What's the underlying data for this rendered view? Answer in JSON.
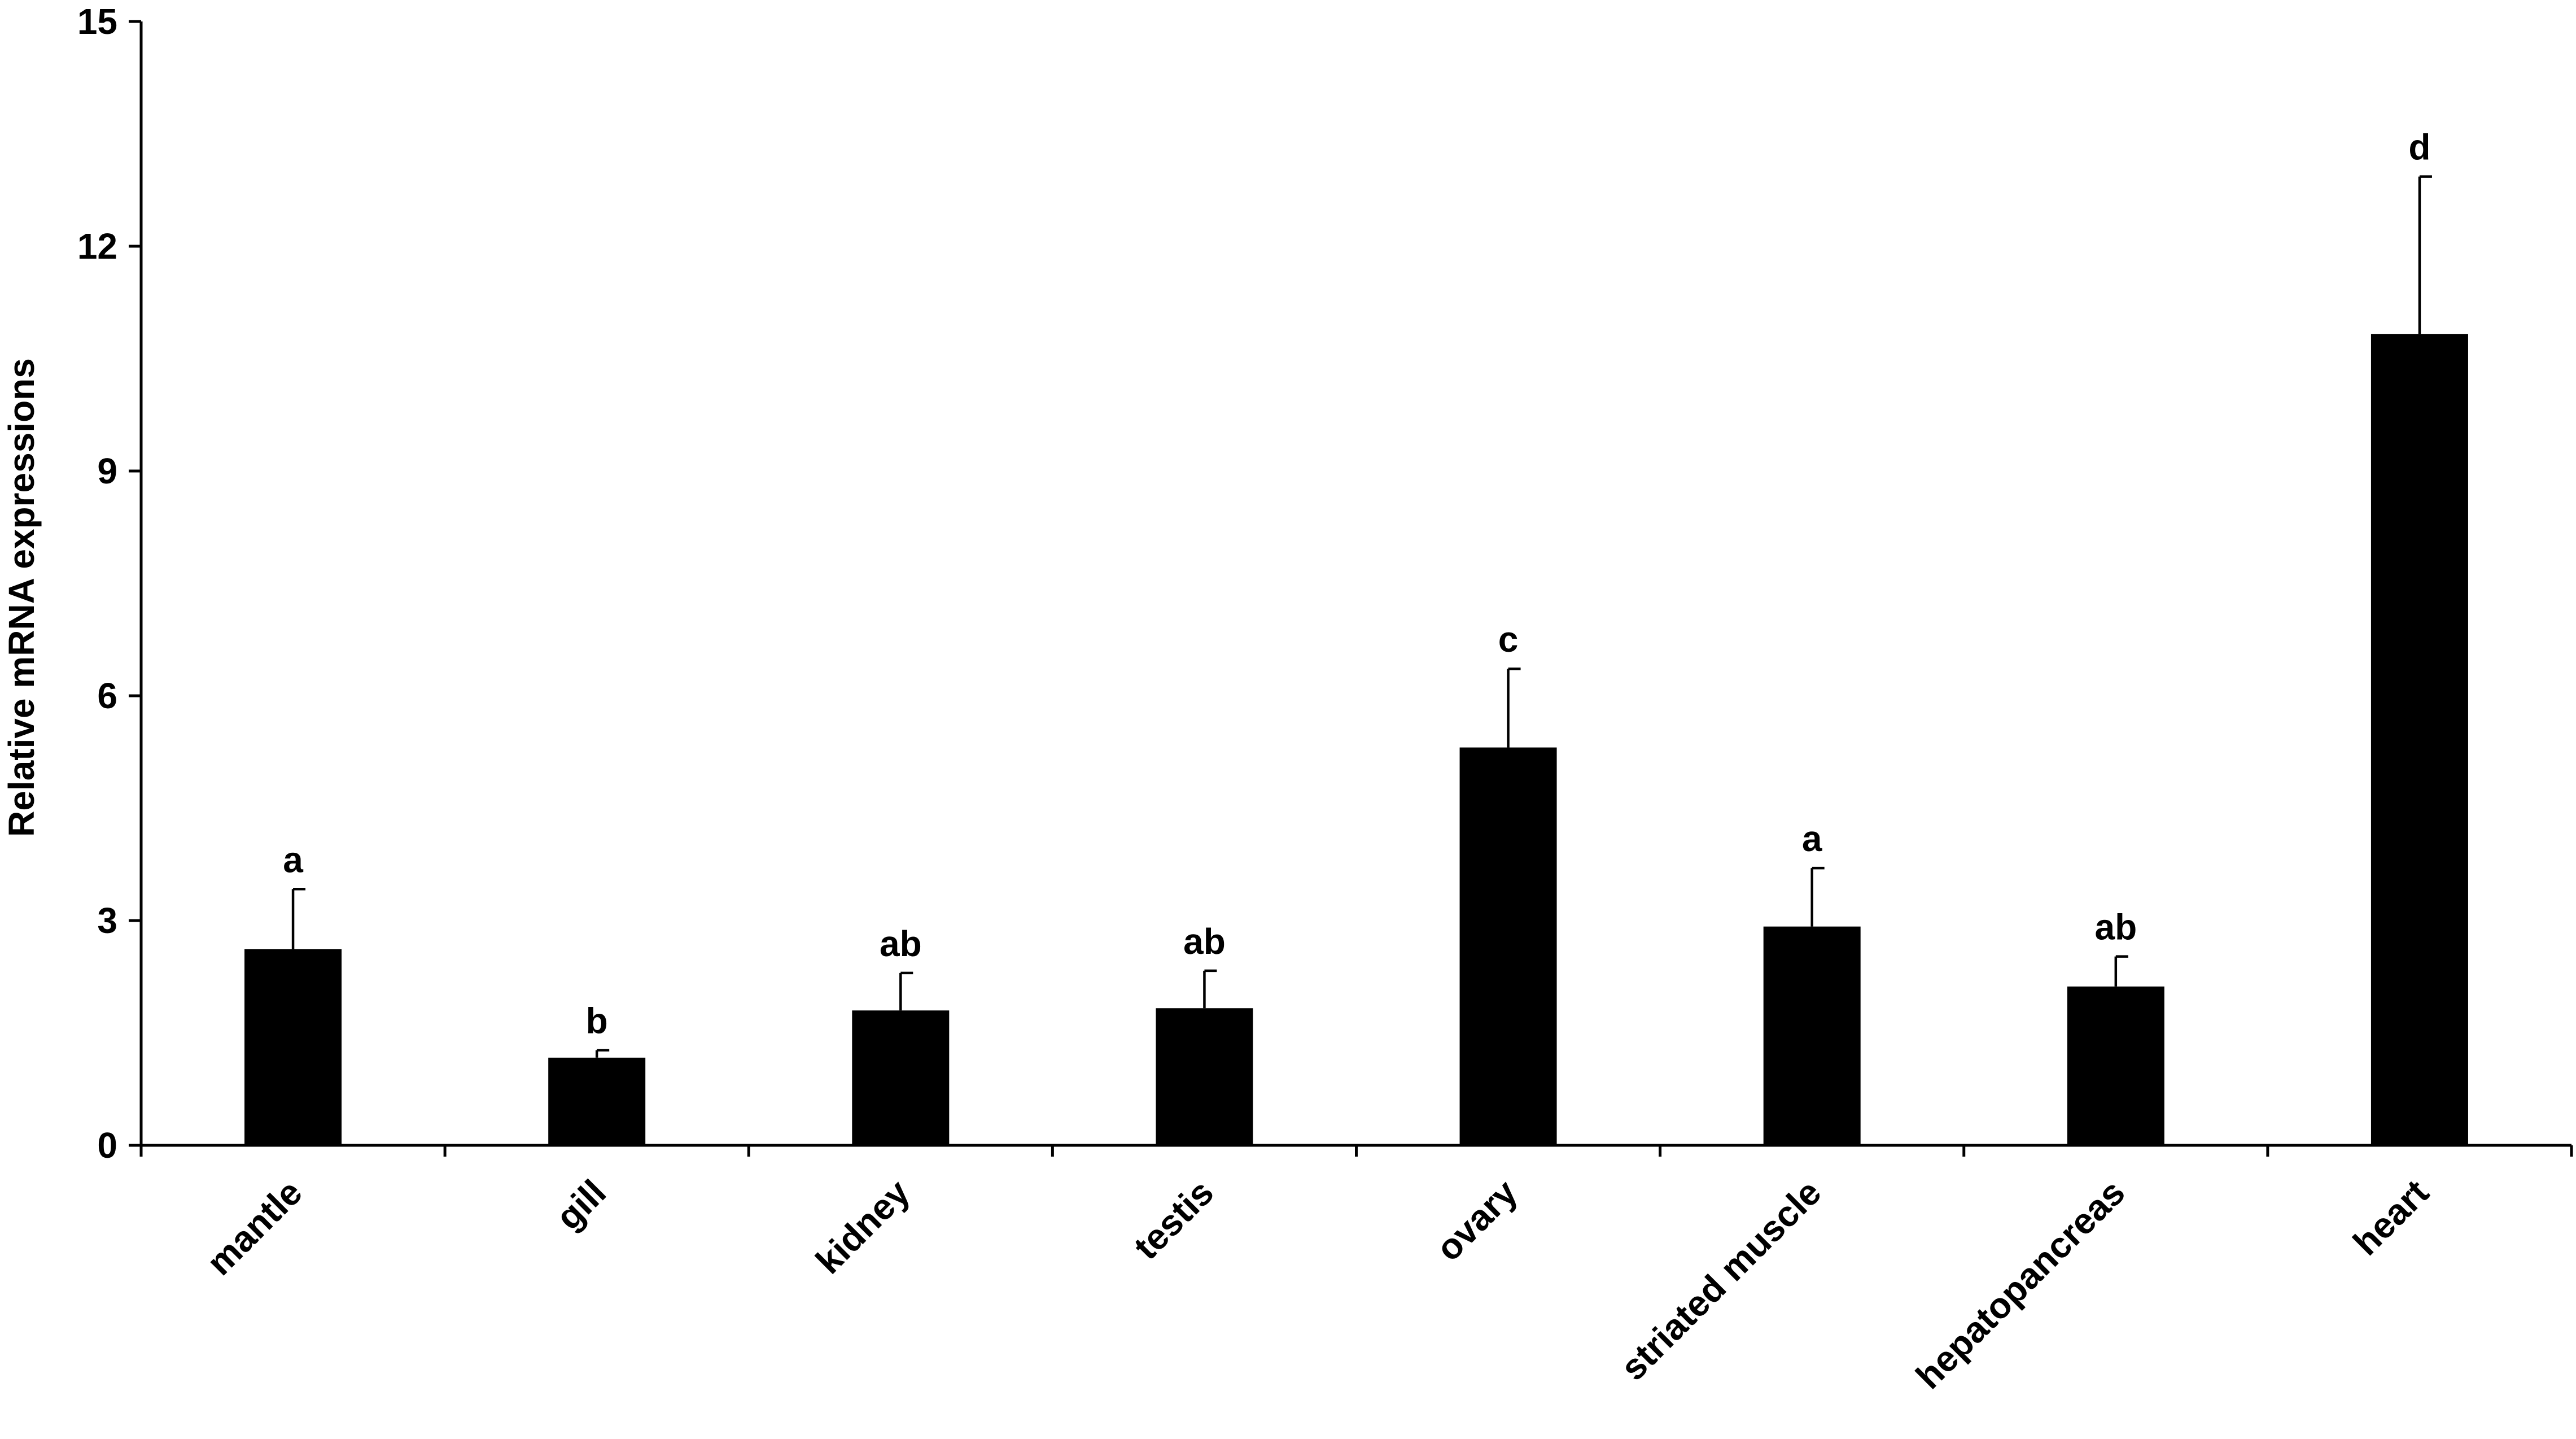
{
  "chart_data": {
    "type": "bar",
    "title": "",
    "xlabel": "",
    "ylabel": "Relative mRNA expressions",
    "ylim": [
      0,
      15
    ],
    "yticks": [
      0,
      3,
      6,
      9,
      12,
      15
    ],
    "grid": false,
    "legend": "none",
    "bar_color": "#000000",
    "categories": [
      "mantle",
      "gill",
      "kidney",
      "testis",
      "ovary",
      "striated muscle",
      "hepatopancreas",
      "heart"
    ],
    "values": [
      2.62,
      1.17,
      1.8,
      1.83,
      5.31,
      2.92,
      2.12,
      10.83
    ],
    "errors": [
      0.8,
      0.1,
      0.5,
      0.5,
      1.05,
      0.78,
      0.4,
      2.1
    ],
    "significance": [
      "a",
      "b",
      "ab",
      "ab",
      "c",
      "a",
      "ab",
      "d"
    ]
  }
}
